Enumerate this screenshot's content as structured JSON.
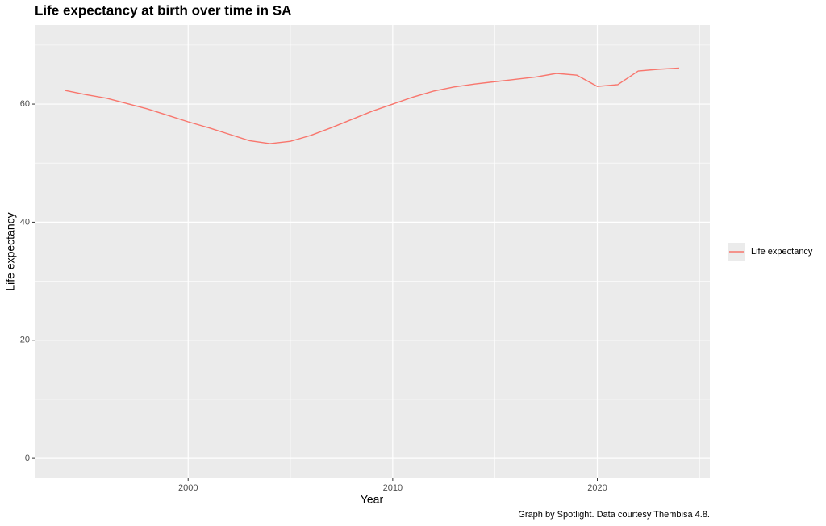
{
  "chart_data": {
    "type": "line",
    "title": "Life expectancy at birth over time in SA",
    "x_label": "Year",
    "y_label": "Life expectancy",
    "caption": "Graph by Spotlight. Data courtesy Thembisa 4.8.",
    "x": [
      1994,
      1995,
      1996,
      1997,
      1998,
      1999,
      2000,
      2001,
      2002,
      2003,
      2004,
      2005,
      2006,
      2007,
      2008,
      2009,
      2010,
      2011,
      2012,
      2013,
      2014,
      2015,
      2016,
      2017,
      2018,
      2019,
      2020,
      2021,
      2022,
      2023,
      2024
    ],
    "series": [
      {
        "name": "Life expectancy",
        "color": "#F8766D",
        "values": [
          62.3,
          61.6,
          61.0,
          60.1,
          59.2,
          58.1,
          57.0,
          56.0,
          54.9,
          53.8,
          53.3,
          53.7,
          54.7,
          56.0,
          57.4,
          58.8,
          60.0,
          61.2,
          62.2,
          62.9,
          63.4,
          63.8,
          64.2,
          64.6,
          65.2,
          64.9,
          63.0,
          63.3,
          65.6,
          65.9,
          66.1
        ]
      }
    ],
    "xlim": [
      1992.5,
      2025.5
    ],
    "ylim": [
      -3.4,
      73.4
    ],
    "xticks": [
      2000,
      2010,
      2020
    ],
    "yticks": [
      0,
      20,
      40,
      60
    ],
    "grid": true,
    "legend": "right"
  }
}
